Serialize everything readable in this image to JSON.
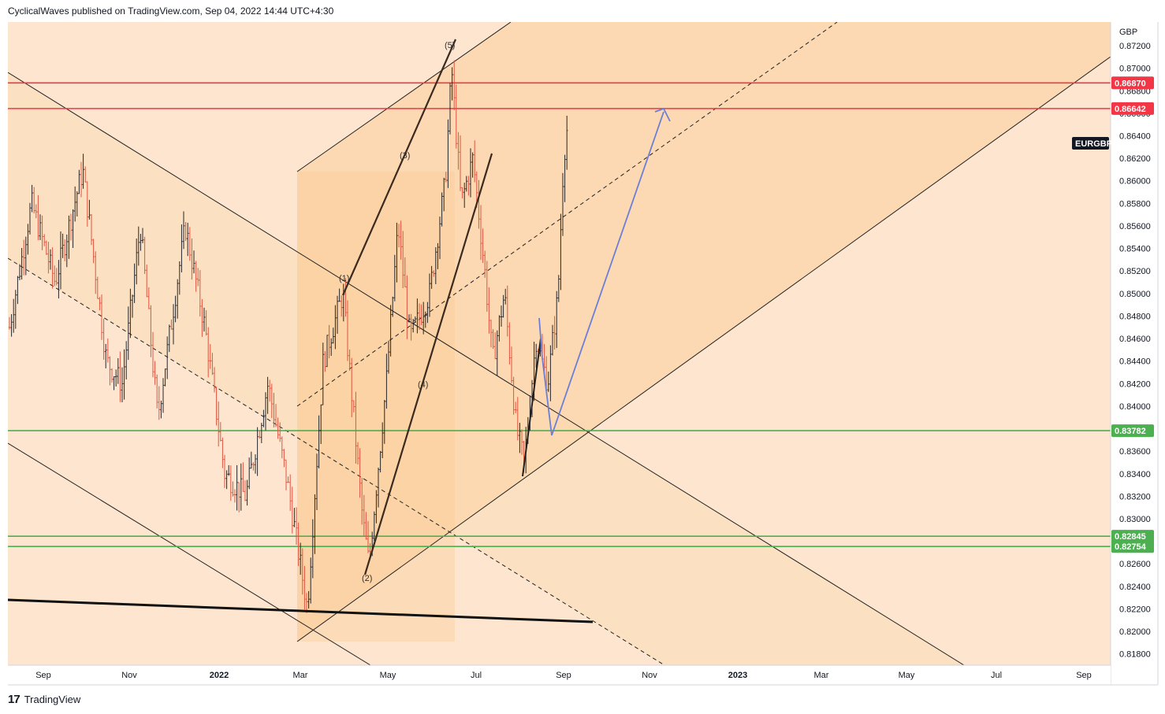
{
  "header": {
    "text": "CyclicalWaves published on TradingView.com, Sep 04, 2022 14:44 UTC+4:30"
  },
  "footer": {
    "logo": "17",
    "brand": "TradingView"
  },
  "chart_data": {
    "type": "candlestick",
    "symbol": "EURGBP",
    "currency": "GBP",
    "y_range": [
      0.817,
      0.8741
    ],
    "y_ticks": [
      "0.87200",
      "0.87000",
      "0.86800",
      "0.86600",
      "0.86400",
      "0.86200",
      "0.86000",
      "0.85800",
      "0.85600",
      "0.85400",
      "0.85200",
      "0.85000",
      "0.84800",
      "0.84600",
      "0.84400",
      "0.84200",
      "0.84000",
      "0.83800",
      "0.83600",
      "0.83400",
      "0.83200",
      "0.83000",
      "0.82800",
      "0.82600",
      "0.82400",
      "0.82200",
      "0.82000",
      "0.81800"
    ],
    "x_ticks": [
      "Sep",
      "Nov",
      "2022",
      "Mar",
      "May",
      "Jul",
      "Sep",
      "Nov",
      "2023",
      "Mar",
      "May",
      "Jul",
      "Sep"
    ],
    "price_levels": [
      {
        "label": "0.86870",
        "value": 0.8687,
        "color": "#f23645"
      },
      {
        "label": "0.86642",
        "value": 0.86642,
        "color": "#f23645"
      },
      {
        "label": "0.83782",
        "value": 0.83782,
        "color": "#4caf50"
      },
      {
        "label": "0.82845",
        "value": 0.82845,
        "color": "#4caf50"
      },
      {
        "label": "0.82754",
        "value": 0.82754,
        "color": "#4caf50"
      }
    ],
    "wave_labels": [
      "(1)",
      "(2)",
      "(3)",
      "(4)",
      "(5)"
    ],
    "colors": {
      "up": "#26262a",
      "down": "#e0533f",
      "channel_fill": "#fbd9b3",
      "background": "#fde5cf",
      "projection": "#6b7fd7"
    }
  }
}
